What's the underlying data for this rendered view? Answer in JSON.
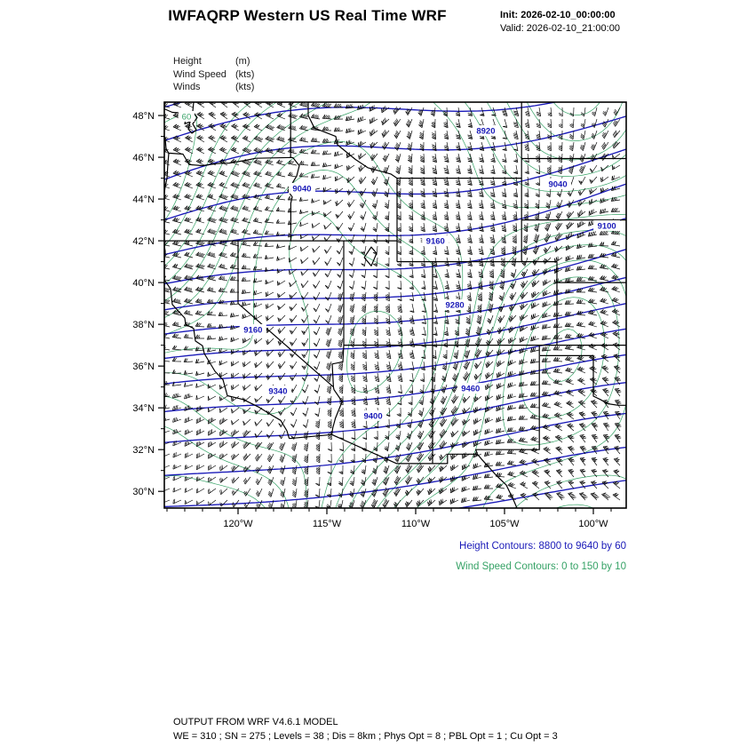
{
  "title": "IWFAQRP Western US Real Time WRF",
  "run_info": {
    "init": "Init: 2026-02-10_00:00:00",
    "valid": "Valid: 2026-02-10_21:00:00"
  },
  "legend": {
    "items": [
      {
        "name": "Height",
        "unit": "(m)"
      },
      {
        "name": "Wind Speed",
        "unit": "(kts)"
      },
      {
        "name": "Winds",
        "unit": "(kts)"
      }
    ]
  },
  "contour_info": {
    "height": "Height Contours: 8800 to 9640 by 60",
    "wind_speed": "Wind Speed Contours: 0 to 150 by 10"
  },
  "footer": {
    "model": "OUTPUT FROM WRF V4.6.1 MODEL",
    "config": "WE = 310 ; SN = 275 ; Levels = 38 ; Dis = 8km ; Phys Opt = 8 ; PBL Opt = 1 ; Cu Opt = 3"
  },
  "colors": {
    "height_contour": "#1a1ab8",
    "wind_contour": "#36a266",
    "barb": "#000000",
    "map_border": "#000000",
    "frame": "#000000"
  },
  "chart_data": {
    "type": "contour-map",
    "title": "IWFAQRP Western US Real Time WRF",
    "region": "Western US",
    "lat_range": [
      29.2,
      48.64
    ],
    "lon_range": [
      -124.15,
      -98.15
    ],
    "lat_ticks": {
      "labels": [
        "48°N",
        "46°N",
        "44°N",
        "42°N",
        "40°N",
        "38°N",
        "36°N",
        "34°N",
        "32°N",
        "30°N"
      ],
      "values": [
        48,
        46,
        44,
        42,
        40,
        38,
        36,
        34,
        32,
        30
      ]
    },
    "lon_ticks": {
      "labels": [
        "120°W",
        "115°W",
        "110°W",
        "105°W",
        "100°W"
      ],
      "values": [
        -120,
        -115,
        -110,
        -105,
        -100
      ]
    },
    "height_contours": {
      "units": "m",
      "min": 8800,
      "max": 9640,
      "interval": 60,
      "labels": [
        {
          "value": "8920",
          "fx": 0.696,
          "fy": 0.07
        },
        {
          "value": "9040",
          "fx": 0.298,
          "fy": 0.212
        },
        {
          "value": "9040",
          "fx": 0.852,
          "fy": 0.201
        },
        {
          "value": "9100",
          "fx": 0.958,
          "fy": 0.304
        },
        {
          "value": "9160",
          "fx": 0.587,
          "fy": 0.341
        },
        {
          "value": "9160",
          "fx": 0.192,
          "fy": 0.56
        },
        {
          "value": "9280",
          "fx": 0.629,
          "fy": 0.499
        },
        {
          "value": "9340",
          "fx": 0.246,
          "fy": 0.711
        },
        {
          "value": "9400",
          "fx": 0.452,
          "fy": 0.772
        },
        {
          "value": "9460",
          "fx": 0.663,
          "fy": 0.705
        }
      ]
    },
    "wind_speed_contours": {
      "units": "kts",
      "min": 0,
      "max": 150,
      "interval": 10,
      "labels": [
        {
          "value": "60",
          "fx": 0.048,
          "fy": 0.035
        }
      ]
    },
    "wind_barbs": {
      "units": "kts"
    }
  }
}
